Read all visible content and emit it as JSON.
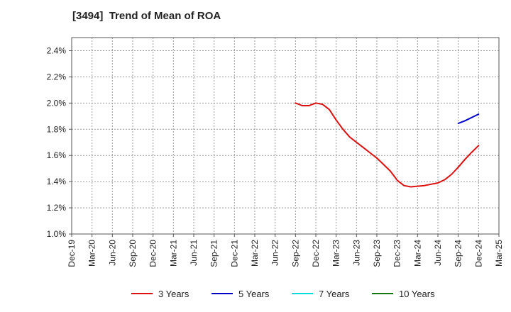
{
  "chart_data": {
    "type": "line",
    "title": "[3494]  Trend of Mean of ROA",
    "xlabel": "",
    "ylabel": "",
    "x_ticks": [
      "Dec-19",
      "Mar-20",
      "Jun-20",
      "Sep-20",
      "Dec-20",
      "Mar-21",
      "Jun-21",
      "Sep-21",
      "Dec-21",
      "Mar-22",
      "Jun-22",
      "Sep-22",
      "Dec-22",
      "Mar-23",
      "Jun-23",
      "Sep-23",
      "Dec-23",
      "Mar-24",
      "Jun-24",
      "Sep-24",
      "Dec-24",
      "Mar-25"
    ],
    "y_ticks": [
      "1.0%",
      "1.2%",
      "1.4%",
      "1.6%",
      "1.8%",
      "2.0%",
      "2.2%",
      "2.4%"
    ],
    "ylim": [
      1.0,
      2.5
    ],
    "grid": true,
    "legend_position": "bottom",
    "series": [
      {
        "name": "3 Years",
        "color": "#dd1111",
        "x": [
          "Sep-22",
          "Oct-22",
          "Nov-22",
          "Dec-22",
          "Jan-23",
          "Feb-23",
          "Mar-23",
          "Apr-23",
          "May-23",
          "Jun-23",
          "Jul-23",
          "Aug-23",
          "Sep-23",
          "Oct-23",
          "Nov-23",
          "Dec-23",
          "Jan-24",
          "Feb-24",
          "Mar-24",
          "Apr-24",
          "May-24",
          "Jun-24",
          "Jul-24",
          "Aug-24",
          "Sep-24",
          "Oct-24",
          "Nov-24",
          "Dec-24"
        ],
        "values": [
          2.0,
          1.98,
          1.98,
          2.0,
          1.99,
          1.95,
          1.87,
          1.8,
          1.74,
          1.7,
          1.66,
          1.62,
          1.58,
          1.53,
          1.48,
          1.41,
          1.37,
          1.36,
          1.365,
          1.37,
          1.38,
          1.39,
          1.415,
          1.455,
          1.51,
          1.57,
          1.625,
          1.675
        ]
      },
      {
        "name": "5 Years",
        "color": "#0000cc",
        "x": [
          "Sep-24",
          "Oct-24",
          "Nov-24",
          "Dec-24"
        ],
        "values": [
          1.845,
          1.865,
          1.89,
          1.915
        ]
      },
      {
        "name": "7 Years",
        "color": "#00dddd",
        "x": [],
        "values": []
      },
      {
        "name": "10 Years",
        "color": "#117711",
        "x": [],
        "values": []
      }
    ]
  }
}
